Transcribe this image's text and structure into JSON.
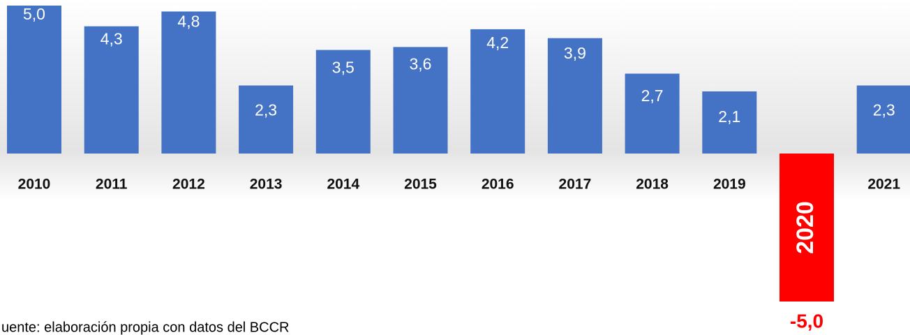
{
  "chart_data": {
    "type": "bar",
    "categories": [
      "2010",
      "2011",
      "2012",
      "2013",
      "2014",
      "2015",
      "2016",
      "2017",
      "2018",
      "2019",
      "2020",
      "2021"
    ],
    "values": [
      5.0,
      4.3,
      4.8,
      2.3,
      3.5,
      3.6,
      4.2,
      3.9,
      2.7,
      2.1,
      -5.0,
      2.3
    ],
    "value_labels": [
      "5,0",
      "4,3",
      "4,8",
      "2,3",
      "3,5",
      "3,6",
      "4,2",
      "3,9",
      "2,7",
      "2,1",
      "-5,0",
      "2,3"
    ],
    "color": "#4472c4",
    "negative_color": "#ff0000",
    "source": "uente: elaboración propia con datos del BCCR"
  }
}
